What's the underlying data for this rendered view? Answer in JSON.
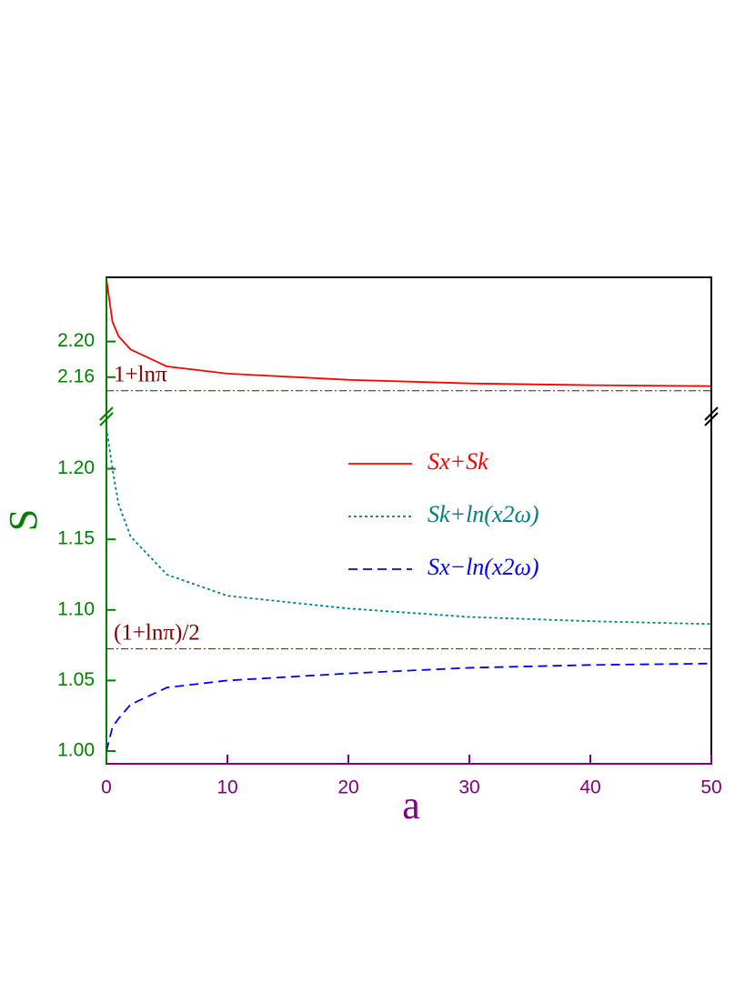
{
  "chart_data": {
    "type": "line",
    "xlabel": "a",
    "ylabel": "S",
    "xcolor": "#800080",
    "ycolor": "#008000",
    "refcolor": "#800000",
    "x": [
      0,
      0.5,
      1,
      2,
      5,
      10,
      20,
      30,
      40,
      50
    ],
    "xlim": [
      0,
      50
    ],
    "xticks": [
      0,
      10,
      20,
      30,
      40,
      50
    ],
    "legend": "upper right",
    "panels": [
      {
        "ylim": [
          2.119,
          2.272
        ],
        "yticks": [
          2.16,
          {
            "value": 2.2,
            "label": "2.20"
          }
        ],
        "reference": {
          "value": 2.1447,
          "label": "1+lnπ"
        },
        "series": [
          {
            "name": "Sx+Sk",
            "color": "#ff0000",
            "dash": "solid",
            "values": [
              2.27,
              2.222,
              2.206,
              2.191,
              2.172,
              2.164,
              2.157,
              2.153,
              2.151,
              2.15
            ]
          }
        ]
      },
      {
        "ylim": [
          0.991,
          1.239
        ],
        "yticks": [
          {
            "value": 1,
            "label": "1.00"
          },
          1.05,
          {
            "value": 1.1,
            "label": "1.10"
          },
          1.15,
          {
            "value": 1.2,
            "label": "1.20"
          }
        ],
        "reference": {
          "value": 1.0724,
          "label": "(1+lnπ)/2"
        },
        "series": [
          {
            "name": "Sk+ln(x2ω)",
            "color": "#008080",
            "dash": "dotted",
            "values": [
              1.229,
              1.2,
              1.175,
              1.152,
              1.125,
              1.11,
              1.101,
              1.095,
              1.092,
              1.09
            ]
          },
          {
            "name": "Sx−ln(x2ω)",
            "color": "#0000ff",
            "dash": "dashed",
            "values": [
              1.0,
              1.017,
              1.023,
              1.033,
              1.045,
              1.05,
              1.055,
              1.059,
              1.061,
              1.062
            ]
          }
        ]
      }
    ]
  }
}
